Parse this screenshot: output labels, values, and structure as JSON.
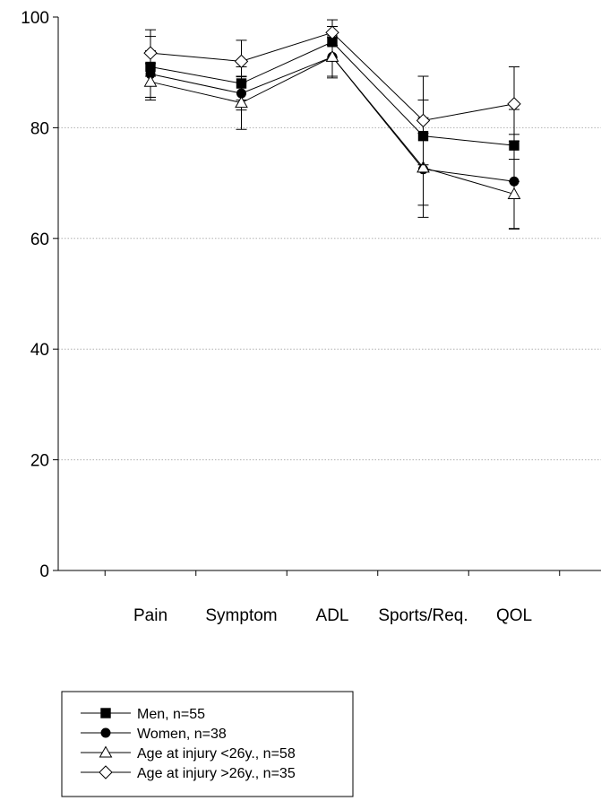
{
  "chart_data": {
    "type": "line",
    "categories": [
      "Pain",
      "Symptom",
      "ADL",
      "Sports/Req.",
      "QOL"
    ],
    "ylim": [
      0,
      100
    ],
    "yticks": [
      0,
      20,
      40,
      60,
      80,
      100
    ],
    "grid": true,
    "legend_position": "bottom-left",
    "series": [
      {
        "name": "Men, n=55",
        "marker": "square-filled",
        "values": [
          91.0,
          88.0,
          95.5,
          78.5,
          76.8
        ],
        "err": [
          5.5,
          3.0,
          2.8,
          6.5,
          6.5
        ]
      },
      {
        "name": "Women, n=38",
        "marker": "circle-filled",
        "values": [
          89.7,
          86.2,
          92.8,
          72.5,
          70.3
        ],
        "err": [
          4.2,
          3.0,
          3.5,
          6.5,
          8.5
        ]
      },
      {
        "name": "Age at injury <26y., n=58",
        "marker": "triangle-open",
        "values": [
          88.3,
          84.5,
          92.8,
          72.8,
          68.0
        ],
        "err": [
          3.3,
          4.8,
          3.8,
          9.0,
          6.3
        ]
      },
      {
        "name": "Age at injury >26y., n=35",
        "marker": "diamond-open",
        "values": [
          93.5,
          92.0,
          97.2,
          81.3,
          84.3
        ],
        "err": [
          4.2,
          3.8,
          2.3,
          8.0,
          6.7
        ]
      }
    ]
  }
}
